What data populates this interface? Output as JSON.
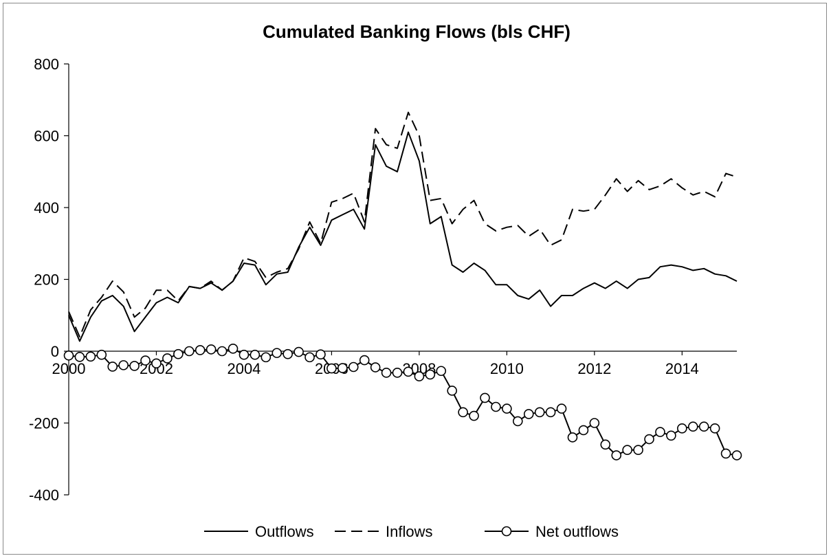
{
  "chart_data": {
    "type": "line",
    "title": "Cumulated Banking Flows (bls CHF)",
    "xlabel": "",
    "ylabel": "",
    "xlim": [
      2000,
      2015.25
    ],
    "ylim": [
      -400,
      800
    ],
    "y_ticks": [
      800,
      600,
      400,
      200,
      0,
      -200,
      -400
    ],
    "x_ticks": [
      2000,
      2002,
      2004,
      2006,
      2008,
      2010,
      2012,
      2014
    ],
    "x_tick_labels": [
      "2000",
      "2002",
      "2004",
      "2006",
      "2008",
      "2010",
      "2012",
      "2014"
    ],
    "grid": false,
    "legend_position": "bottom",
    "x": [
      2000.0,
      2000.25,
      2000.5,
      2000.75,
      2001.0,
      2001.25,
      2001.5,
      2001.75,
      2002.0,
      2002.25,
      2002.5,
      2002.75,
      2003.0,
      2003.25,
      2003.5,
      2003.75,
      2004.0,
      2004.25,
      2004.5,
      2004.75,
      2005.0,
      2005.25,
      2005.5,
      2005.75,
      2006.0,
      2006.25,
      2006.5,
      2006.75,
      2007.0,
      2007.25,
      2007.5,
      2007.75,
      2008.0,
      2008.25,
      2008.5,
      2008.75,
      2009.0,
      2009.25,
      2009.5,
      2009.75,
      2010.0,
      2010.25,
      2010.5,
      2010.75,
      2011.0,
      2011.25,
      2011.5,
      2011.75,
      2012.0,
      2012.25,
      2012.5,
      2012.75,
      2013.0,
      2013.25,
      2013.5,
      2013.75,
      2014.0,
      2014.25,
      2014.5,
      2014.75,
      2015.0,
      2015.25
    ],
    "series": [
      {
        "name": "Outflows",
        "style": "solid",
        "color": "#000000",
        "values": [
          100,
          28,
          95,
          140,
          155,
          125,
          55,
          95,
          135,
          150,
          135,
          180,
          175,
          190,
          170,
          195,
          245,
          240,
          185,
          215,
          220,
          290,
          345,
          295,
          365,
          380,
          395,
          340,
          575,
          515,
          500,
          610,
          530,
          355,
          375,
          240,
          220,
          245,
          225,
          185,
          185,
          155,
          145,
          170,
          125,
          155,
          155,
          175,
          190,
          175,
          195,
          175,
          200,
          205,
          235,
          240,
          235,
          225,
          230,
          215,
          210,
          195
        ]
      },
      {
        "name": "Inflows",
        "style": "dashed",
        "color": "#000000",
        "values": [
          110,
          40,
          115,
          150,
          195,
          165,
          95,
          120,
          170,
          170,
          140,
          180,
          175,
          195,
          170,
          195,
          260,
          250,
          205,
          220,
          230,
          285,
          360,
          300,
          415,
          425,
          440,
          360,
          620,
          575,
          565,
          665,
          600,
          420,
          425,
          355,
          395,
          420,
          355,
          335,
          345,
          350,
          320,
          340,
          295,
          310,
          395,
          390,
          395,
          435,
          480,
          445,
          475,
          450,
          460,
          480,
          455,
          435,
          445,
          430,
          495,
          485
        ]
      },
      {
        "name": "Net outflows",
        "style": "solid-circle",
        "color": "#000000",
        "values": [
          -12,
          -16,
          -15,
          -10,
          -43,
          -39,
          -41,
          -26,
          -34,
          -20,
          -8,
          0,
          3,
          5,
          0,
          7,
          -10,
          -10,
          -17,
          -5,
          -8,
          -2,
          -17,
          -9,
          -48,
          -47,
          -44,
          -25,
          -45,
          -60,
          -60,
          -57,
          -70,
          -65,
          -55,
          -110,
          -170,
          -180,
          -130,
          -155,
          -160,
          -195,
          -175,
          -170,
          -170,
          -160,
          -240,
          -220,
          -200,
          -260,
          -290,
          -275,
          -275,
          -245,
          -225,
          -235,
          -215,
          -210,
          -210,
          -215,
          -285,
          -290
        ]
      }
    ]
  }
}
